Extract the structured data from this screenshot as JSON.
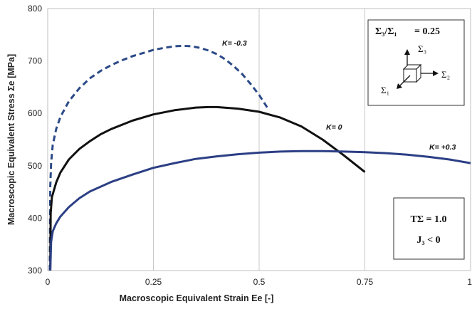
{
  "chart_data": {
    "type": "line",
    "xlabel": "Macroscopic Equivalent Strain Ee [-]",
    "ylabel": "Macroscopic Equivalent Stress Σe [MPa]",
    "xlim": [
      0,
      1
    ],
    "ylim": [
      300,
      800
    ],
    "x_ticks": [
      0,
      0.25,
      0.5,
      0.75,
      1
    ],
    "x_tick_labels": [
      "0",
      "0.25",
      "0.5",
      "0.75",
      "1"
    ],
    "y_ticks": [
      300,
      400,
      500,
      600,
      700,
      800
    ],
    "y_tick_labels": [
      "300",
      "400",
      "500",
      "600",
      "700",
      "800"
    ],
    "grid": "vertical",
    "series": [
      {
        "name": "K= -0.3",
        "color": "#2c4a87",
        "dash": "dashed",
        "points": [
          [
            0.005,
            300
          ],
          [
            0.006,
            460
          ],
          [
            0.008,
            505
          ],
          [
            0.012,
            540
          ],
          [
            0.02,
            570
          ],
          [
            0.03,
            593
          ],
          [
            0.05,
            623
          ],
          [
            0.075,
            648
          ],
          [
            0.1,
            667
          ],
          [
            0.125,
            681
          ],
          [
            0.15,
            692
          ],
          [
            0.175,
            701
          ],
          [
            0.2,
            709
          ],
          [
            0.225,
            715
          ],
          [
            0.25,
            721
          ],
          [
            0.275,
            725
          ],
          [
            0.3,
            728
          ],
          [
            0.32,
            729
          ],
          [
            0.34,
            728
          ],
          [
            0.36,
            725
          ],
          [
            0.38,
            720
          ],
          [
            0.4,
            713
          ],
          [
            0.42,
            703
          ],
          [
            0.44,
            690
          ],
          [
            0.46,
            675
          ],
          [
            0.48,
            656
          ],
          [
            0.5,
            635
          ],
          [
            0.52,
            610
          ]
        ]
      },
      {
        "name": "K= 0",
        "color": "#111111",
        "dash": "solid",
        "points": [
          [
            0.006,
            300
          ],
          [
            0.007,
            410
          ],
          [
            0.01,
            440
          ],
          [
            0.02,
            468
          ],
          [
            0.03,
            487
          ],
          [
            0.05,
            512
          ],
          [
            0.075,
            532
          ],
          [
            0.1,
            547
          ],
          [
            0.125,
            560
          ],
          [
            0.15,
            570
          ],
          [
            0.2,
            586
          ],
          [
            0.25,
            598
          ],
          [
            0.3,
            606
          ],
          [
            0.35,
            611
          ],
          [
            0.38,
            612
          ],
          [
            0.4,
            612
          ],
          [
            0.45,
            609
          ],
          [
            0.5,
            603
          ],
          [
            0.55,
            592
          ],
          [
            0.6,
            575
          ],
          [
            0.65,
            550
          ],
          [
            0.7,
            520
          ],
          [
            0.75,
            488
          ]
        ]
      },
      {
        "name": "K= +0.3",
        "color": "#2c3f85",
        "dash": "solid",
        "points": [
          [
            0.006,
            300
          ],
          [
            0.008,
            355
          ],
          [
            0.012,
            375
          ],
          [
            0.02,
            390
          ],
          [
            0.03,
            403
          ],
          [
            0.05,
            421
          ],
          [
            0.075,
            438
          ],
          [
            0.1,
            451
          ],
          [
            0.15,
            469
          ],
          [
            0.2,
            483
          ],
          [
            0.25,
            496
          ],
          [
            0.3,
            505
          ],
          [
            0.35,
            513
          ],
          [
            0.4,
            518
          ],
          [
            0.45,
            522
          ],
          [
            0.5,
            525
          ],
          [
            0.55,
            527
          ],
          [
            0.6,
            528
          ],
          [
            0.65,
            528
          ],
          [
            0.7,
            527
          ],
          [
            0.75,
            526
          ],
          [
            0.8,
            524
          ],
          [
            0.85,
            521
          ],
          [
            0.9,
            517
          ],
          [
            0.95,
            512
          ],
          [
            1.0,
            505
          ]
        ]
      }
    ],
    "curve_labels": [
      "K= -0.3",
      "K= 0",
      "K= +0.3"
    ]
  },
  "inset_top": {
    "title_lhs": "Σ₃/Σ₁",
    "title_rhs": "= 0.25",
    "axis_labels": [
      "Σ₃",
      "Σ₂",
      "Σ₁"
    ]
  },
  "inset_bottom": {
    "line1": "TΣ = 1.0",
    "line2": "J₃ < 0"
  }
}
